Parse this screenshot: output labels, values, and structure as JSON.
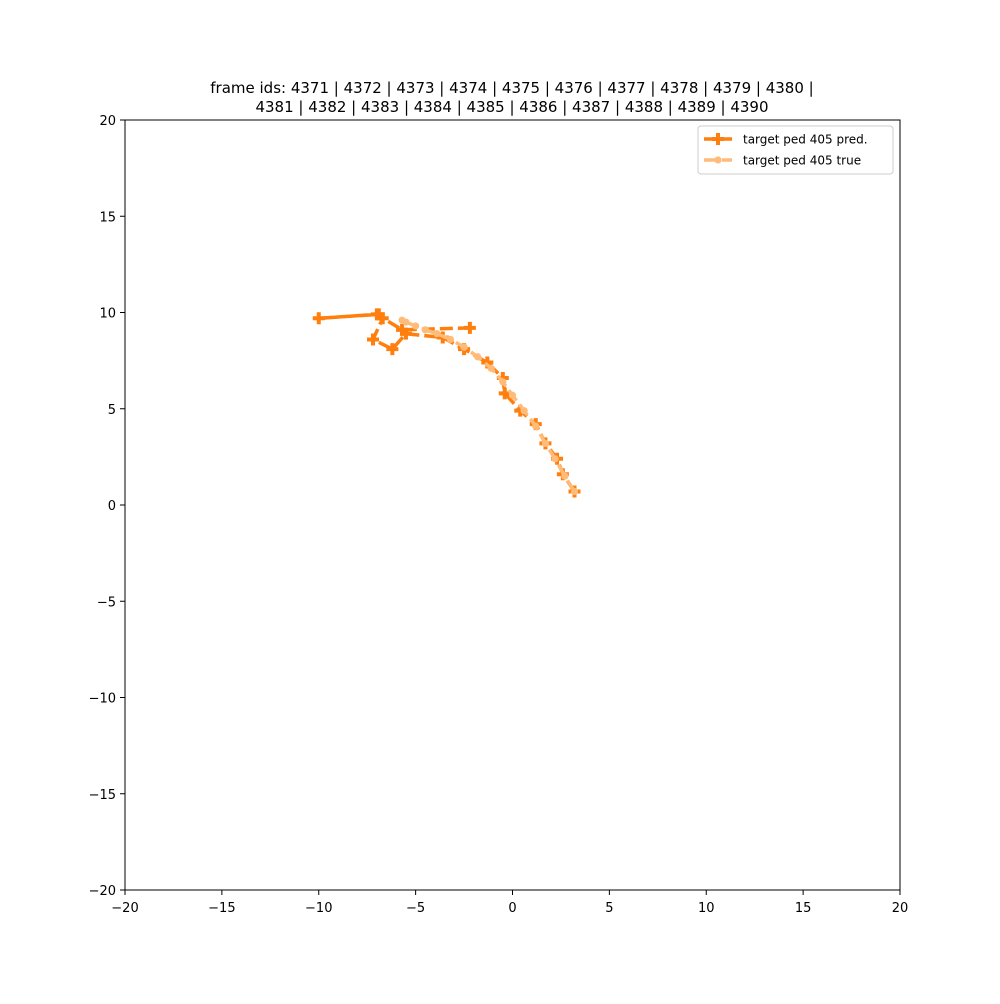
{
  "chart_data": {
    "type": "line",
    "title_lines": [
      "frame ids: 4371 | 4372 | 4373 | 4374 | 4375 | 4376 | 4377 | 4378 | 4379 | 4380 |",
      "4381 | 4382 | 4383 | 4384 | 4385 | 4386 | 4387 | 4388 | 4389 | 4390"
    ],
    "xlabel": "",
    "ylabel": "",
    "xlim": [
      -20,
      20
    ],
    "ylim": [
      -20,
      20
    ],
    "xticks": [
      -20,
      -15,
      -10,
      -5,
      0,
      5,
      10,
      15,
      20
    ],
    "yticks": [
      -20,
      -15,
      -10,
      -5,
      0,
      5,
      10,
      15,
      20
    ],
    "grid": false,
    "legend_position": "top-right",
    "series": [
      {
        "name": "target ped 405 pred.",
        "color": "#ff7f0e",
        "marker": "plus",
        "linestyle": "dashed",
        "points": [
          [
            3.2,
            0.7
          ],
          [
            2.6,
            1.6
          ],
          [
            2.3,
            2.4
          ],
          [
            1.7,
            3.2
          ],
          [
            1.2,
            4.2
          ],
          [
            0.4,
            4.9
          ],
          [
            -0.4,
            5.8
          ],
          [
            -0.5,
            6.6
          ],
          [
            -1.3,
            7.4
          ],
          [
            -2.5,
            8.1
          ],
          [
            -3.6,
            8.7
          ],
          [
            -5.5,
            8.9
          ],
          [
            -6.2,
            8.1
          ],
          [
            -7.2,
            8.6
          ],
          [
            -6.7,
            9.7
          ],
          [
            -6.9,
            9.9
          ],
          [
            -10.0,
            9.7
          ],
          [
            -7.0,
            9.9
          ],
          [
            -5.7,
            9.1
          ],
          [
            -2.2,
            9.2
          ]
        ]
      },
      {
        "name": "target ped 405 true",
        "color": "#ffbb78",
        "marker": "circle",
        "linestyle": "dashed",
        "points": [
          [
            3.2,
            0.7
          ],
          [
            2.7,
            1.5
          ],
          [
            2.2,
            2.4
          ],
          [
            1.7,
            3.2
          ],
          [
            1.2,
            4.1
          ],
          [
            0.6,
            4.9
          ],
          [
            0.0,
            5.7
          ],
          [
            -0.5,
            6.4
          ],
          [
            -1.1,
            7.1
          ],
          [
            -1.8,
            7.7
          ],
          [
            -2.5,
            8.2
          ],
          [
            -3.2,
            8.6
          ],
          [
            -3.9,
            8.9
          ],
          [
            -4.5,
            9.1
          ],
          [
            -5.0,
            9.3
          ],
          [
            -5.5,
            9.5
          ],
          [
            -5.7,
            9.6
          ]
        ]
      }
    ]
  }
}
